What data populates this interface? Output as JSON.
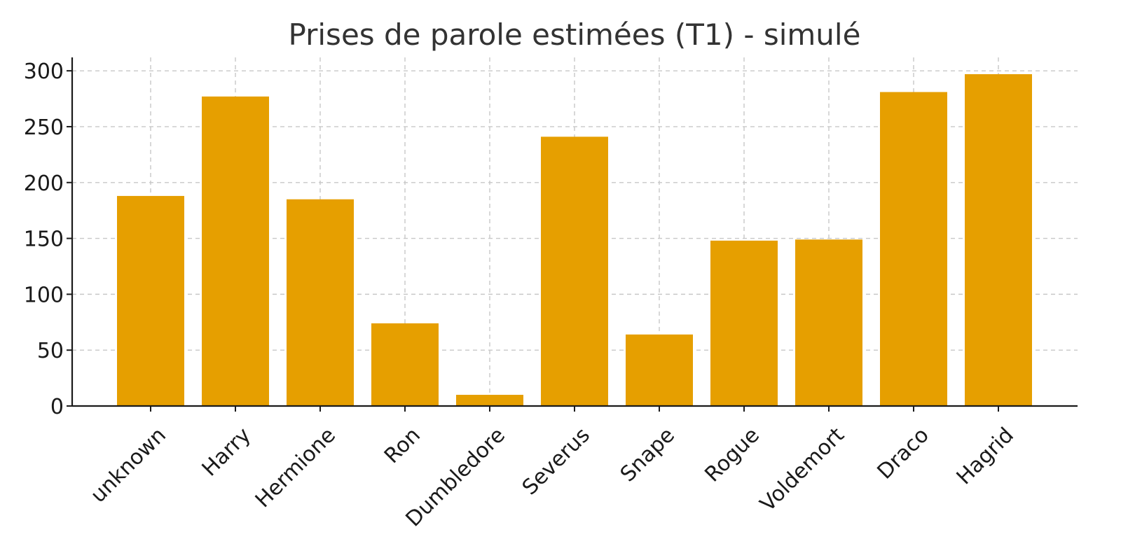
{
  "chart_data": {
    "type": "bar",
    "title": "Prises de parole estimées (T1) - simulé",
    "xlabel": "",
    "ylabel": "",
    "categories": [
      "unknown",
      "Harry",
      "Hermione",
      "Ron",
      "Dumbledore",
      "Severus",
      "Snape",
      "Rogue",
      "Voldemort",
      "Draco",
      "Hagrid"
    ],
    "values": [
      188,
      277,
      185,
      74,
      10,
      241,
      64,
      148,
      149,
      281,
      297
    ],
    "ylim": [
      0,
      312
    ],
    "yticks": [
      0,
      50,
      100,
      150,
      200,
      250,
      300
    ],
    "grid": true,
    "bar_color": "#E69F00",
    "x_tick_rotation": -45
  }
}
